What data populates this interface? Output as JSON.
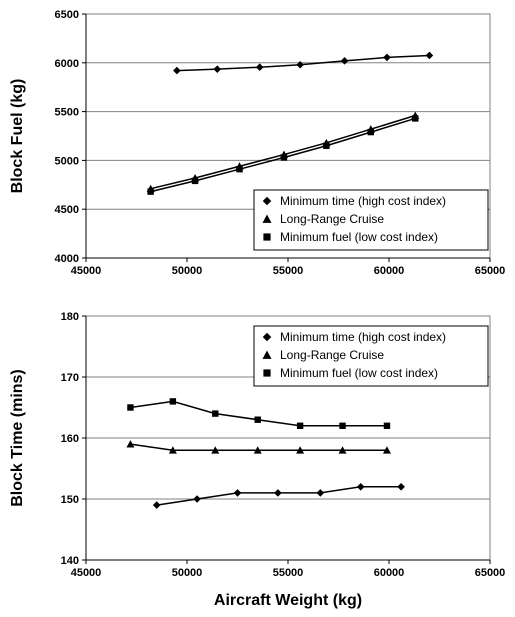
{
  "chart_data": [
    {
      "type": "line",
      "ylabel": "Block Fuel (kg)",
      "xlabel": "",
      "xlim": [
        45000,
        65000
      ],
      "ylim": [
        4000,
        6500
      ],
      "x_ticks": [
        "45000",
        "50000",
        "55000",
        "60000",
        "65000"
      ],
      "y_ticks": [
        "4000",
        "4500",
        "5000",
        "5500",
        "6000",
        "6500"
      ],
      "grid": "horizontal",
      "legend_position": "bottom-right",
      "series": [
        {
          "name": "Minimum time (high cost index)",
          "marker": "diamond",
          "points": [
            [
              49500,
              5920
            ],
            [
              51500,
              5935
            ],
            [
              53600,
              5955
            ],
            [
              55600,
              5980
            ],
            [
              57800,
              6020
            ],
            [
              59900,
              6055
            ],
            [
              62000,
              6075
            ]
          ]
        },
        {
          "name": "Long-Range Cruise",
          "marker": "triangle",
          "points": [
            [
              48200,
              4710
            ],
            [
              50400,
              4820
            ],
            [
              52600,
              4940
            ],
            [
              54800,
              5060
            ],
            [
              56900,
              5180
            ],
            [
              59100,
              5320
            ],
            [
              61300,
              5460
            ]
          ]
        },
        {
          "name": "Minimum fuel (low cost index)",
          "marker": "square",
          "points": [
            [
              48200,
              4680
            ],
            [
              50400,
              4790
            ],
            [
              52600,
              4910
            ],
            [
              54800,
              5030
            ],
            [
              56900,
              5150
            ],
            [
              59100,
              5290
            ],
            [
              61300,
              5430
            ]
          ]
        }
      ]
    },
    {
      "type": "line",
      "ylabel": "Block Time (mins)",
      "xlabel": "Aircraft Weight (kg)",
      "xlim": [
        45000,
        65000
      ],
      "ylim": [
        140,
        180
      ],
      "x_ticks": [
        "45000",
        "50000",
        "55000",
        "60000",
        "65000"
      ],
      "y_ticks": [
        "140",
        "150",
        "160",
        "170",
        "180"
      ],
      "grid": "horizontal",
      "legend_position": "top-right",
      "series": [
        {
          "name": "Minimum time (high cost index)",
          "marker": "diamond",
          "points": [
            [
              48500,
              149
            ],
            [
              50500,
              150
            ],
            [
              52500,
              151
            ],
            [
              54500,
              151
            ],
            [
              56600,
              151
            ],
            [
              58600,
              152
            ],
            [
              60600,
              152
            ]
          ]
        },
        {
          "name": "Long-Range Cruise",
          "marker": "triangle",
          "points": [
            [
              47200,
              159
            ],
            [
              49300,
              158
            ],
            [
              51400,
              158
            ],
            [
              53500,
              158
            ],
            [
              55600,
              158
            ],
            [
              57700,
              158
            ],
            [
              59900,
              158
            ]
          ]
        },
        {
          "name": "Minimum fuel (low cost index)",
          "marker": "square",
          "points": [
            [
              47200,
              165
            ],
            [
              49300,
              166
            ],
            [
              51400,
              164
            ],
            [
              53500,
              163
            ],
            [
              55600,
              162
            ],
            [
              57700,
              162
            ],
            [
              59900,
              162
            ]
          ]
        }
      ]
    }
  ]
}
